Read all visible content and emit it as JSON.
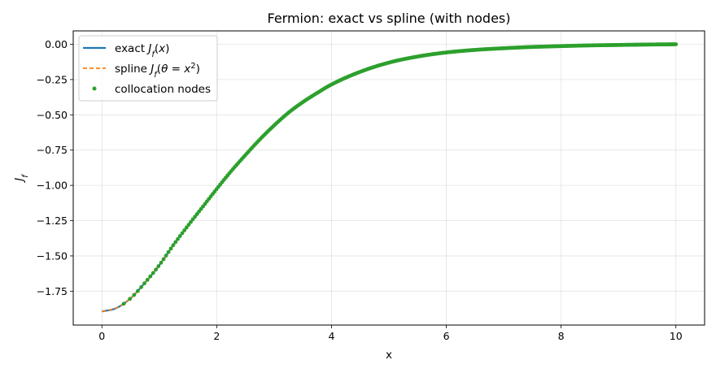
{
  "chart_data": {
    "type": "line",
    "title": "Fermion: exact vs spline (with nodes)",
    "xlabel": "x",
    "ylabel": "J_f",
    "xlim": [
      -0.5,
      10.5
    ],
    "ylim": [
      -1.99,
      0.095
    ],
    "xticks": [
      0,
      2,
      4,
      6,
      8,
      10
    ],
    "xtick_labels": [
      "0",
      "2",
      "4",
      "6",
      "8",
      "10"
    ],
    "yticks": [
      0.0,
      -0.25,
      -0.5,
      -0.75,
      -1.0,
      -1.25,
      -1.5,
      -1.75
    ],
    "ytick_labels": [
      "0.00",
      "−0.25",
      "−0.50",
      "−0.75",
      "−1.00",
      "−1.25",
      "−1.50",
      "−1.75"
    ],
    "grid": true,
    "legend_position": "top-left",
    "x": [
      0.0,
      0.25,
      0.5,
      0.75,
      1.0,
      1.25,
      1.5,
      1.75,
      2.0,
      2.25,
      2.5,
      2.75,
      3.0,
      3.25,
      3.5,
      3.75,
      4.0,
      4.5,
      5.0,
      5.5,
      6.0,
      6.5,
      7.0,
      7.5,
      8.0,
      8.5,
      9.0,
      9.5,
      10.0
    ],
    "series": [
      {
        "name": "exact J_f(x)",
        "color": "#1f77b4",
        "style": "solid",
        "values": [
          -1.894,
          -1.87,
          -1.8,
          -1.69,
          -1.565,
          -1.42,
          -1.285,
          -1.155,
          -1.025,
          -0.9,
          -0.785,
          -0.675,
          -0.575,
          -0.485,
          -0.41,
          -0.345,
          -0.285,
          -0.195,
          -0.13,
          -0.087,
          -0.058,
          -0.04,
          -0.028,
          -0.019,
          -0.013,
          -0.008,
          -0.005,
          -0.002,
          0.0
        ]
      },
      {
        "name": "spline J_f(θ = x²)",
        "color": "#ff7f0e",
        "style": "dashed",
        "values": [
          -1.894,
          -1.87,
          -1.8,
          -1.69,
          -1.565,
          -1.42,
          -1.285,
          -1.155,
          -1.025,
          -0.9,
          -0.785,
          -0.675,
          -0.575,
          -0.485,
          -0.41,
          -0.345,
          -0.285,
          -0.195,
          -0.13,
          -0.087,
          -0.058,
          -0.04,
          -0.028,
          -0.019,
          -0.013,
          -0.008,
          -0.005,
          -0.002,
          0.0
        ]
      },
      {
        "name": "collocation nodes",
        "color": "#2ca02c",
        "style": "markers",
        "node_x_range": [
          0.38,
          10.0
        ],
        "node_count": 400
      }
    ]
  }
}
